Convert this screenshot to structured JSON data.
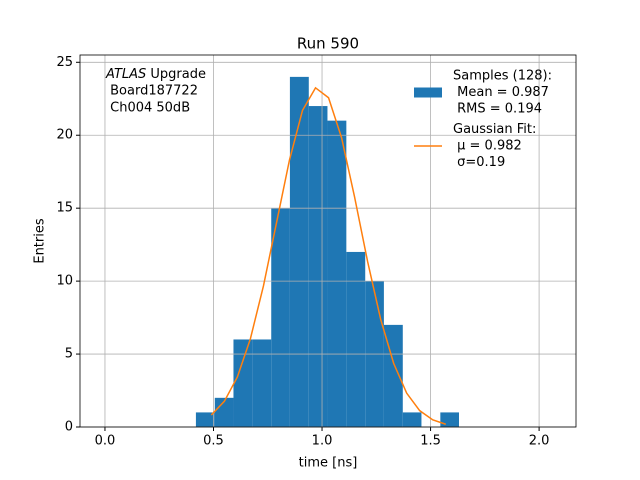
{
  "chart_data": {
    "type": "histogram",
    "title": "Run 590",
    "xlabel": "time [ns]",
    "ylabel": "Entries",
    "annotation": {
      "italic": "ATLAS",
      "rest": " Upgrade",
      "lines": [
        " Board187722",
        " Ch004 50dB"
      ]
    },
    "xlim": [
      -0.115,
      2.17
    ],
    "ylim": [
      0,
      25.5
    ],
    "xticks": [
      {
        "value": 0,
        "label": "0.0"
      },
      0.5,
      {
        "value": 1,
        "label": "1.0"
      },
      1.5,
      {
        "value": 2,
        "label": "2.0"
      }
    ],
    "yticks": [
      0,
      5,
      10,
      15,
      20,
      25
    ],
    "grid": true,
    "legend": "upper right",
    "series": [
      {
        "name": "Samples (128):",
        "details": [
          " Mean = 0.987",
          " RMS = 0.194"
        ],
        "color": "#1f77b4",
        "bins": [
          0.419,
          0.506,
          0.592,
          0.679,
          0.766,
          0.852,
          0.939,
          1.025,
          1.112,
          1.199,
          1.285,
          1.372,
          1.458,
          1.545,
          1.631
        ],
        "values": [
          1,
          2,
          6,
          6,
          15,
          24,
          22,
          21,
          12,
          10,
          7,
          1,
          0,
          1
        ]
      },
      {
        "name": "Gaussian Fit:",
        "details": [
          " μ = 0.982",
          " σ=0.19"
        ],
        "color": "#ff7f0e",
        "x": [
          0.49,
          0.55,
          0.61,
          0.67,
          0.73,
          0.79,
          0.85,
          0.91,
          0.97,
          1.03,
          1.09,
          1.15,
          1.21,
          1.27,
          1.33,
          1.39,
          1.45,
          1.51,
          1.57
        ],
        "values": [
          0.82,
          1.76,
          3.43,
          6.05,
          9.66,
          13.98,
          18.3,
          21.7,
          23.25,
          22.57,
          19.83,
          15.76,
          11.34,
          7.39,
          4.36,
          2.32,
          1.12,
          0.49,
          0.19
        ]
      }
    ]
  }
}
